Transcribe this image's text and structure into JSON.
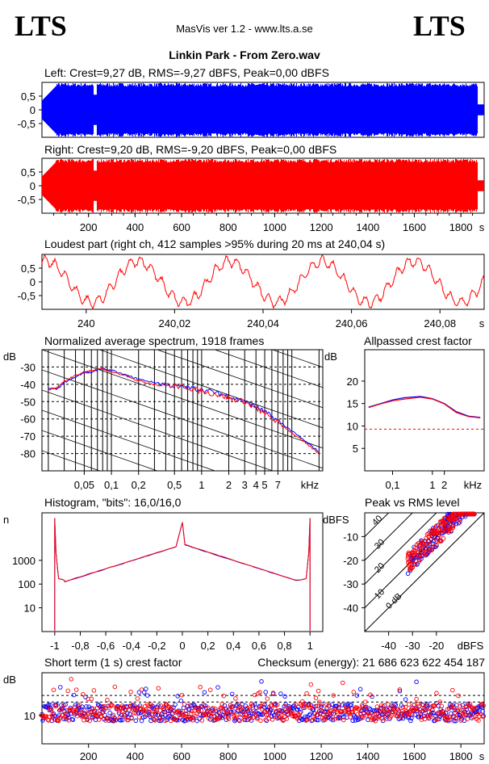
{
  "header": {
    "brand_left": "LTS",
    "brand_right": "LTS",
    "app_title": "MasVis ver 1.2 - www.lts.a.se",
    "file_title": "Linkin Park - From Zero.wav"
  },
  "colors": {
    "left_channel": "#0000ff",
    "right_channel": "#ff0000",
    "axes": "#000000",
    "background": "#ffffff"
  },
  "chart_data": [
    {
      "id": "left",
      "type": "area",
      "title": "Left: Crest=9,27 dB, RMS=-9,27 dBFS, Peak=0,00 dBFS",
      "ylim": [
        -1,
        1
      ],
      "xlim": [
        0,
        1900
      ],
      "yticks": [
        "0,5",
        "0",
        "-0,5"
      ],
      "xticks": [],
      "xunit": "",
      "series": [
        {
          "color": "#0000ff"
        }
      ]
    },
    {
      "id": "right",
      "type": "area",
      "title": "Right: Crest=9,20 dB, RMS=-9,20 dBFS, Peak=0,00 dBFS",
      "ylim": [
        -1,
        1
      ],
      "xlim": [
        0,
        1900
      ],
      "yticks": [
        "0,5",
        "0",
        "-0,5"
      ],
      "xticks": [
        "200",
        "400",
        "600",
        "800",
        "1000",
        "1200",
        "1400",
        "1600",
        "1800"
      ],
      "xunit": "s",
      "series": [
        {
          "color": "#ff0000"
        }
      ]
    },
    {
      "id": "loudest",
      "type": "line",
      "title": "Loudest part (right ch, 412 samples >95% during 20 ms at 240,04 s)",
      "ylim": [
        -1,
        1
      ],
      "xlim": [
        239.99,
        240.09
      ],
      "yticks": [
        "0,5",
        "0",
        "-0,5"
      ],
      "xticks": [
        "240",
        "240,02",
        "240,04",
        "240,06",
        "240,08"
      ],
      "xunit": "s",
      "series": [
        {
          "color": "#ff0000"
        }
      ]
    },
    {
      "id": "spectrum",
      "type": "line",
      "title": "Normalized average spectrum, 1918 frames",
      "ylabel": "dB",
      "xunit": "kHz",
      "yticks": [
        "-30",
        "-40",
        "-50",
        "-60",
        "-70",
        "-80"
      ],
      "xticks": [
        "0,05",
        "0,1",
        "0,2",
        "0,5",
        "1",
        "2",
        "3",
        "4",
        "5",
        "7"
      ],
      "x": [
        0.02,
        0.025,
        0.03,
        0.04,
        0.05,
        0.06,
        0.08,
        0.1,
        0.15,
        0.2,
        0.3,
        0.5,
        0.7,
        1,
        1.5,
        2,
        3,
        4,
        5,
        7,
        10,
        15,
        20
      ],
      "series": [
        {
          "color": "#0000ff",
          "values": [
            -42,
            -43,
            -39,
            -36,
            -33,
            -33,
            -31,
            -32,
            -35,
            -37,
            -39,
            -41,
            -42,
            -43,
            -45,
            -47,
            -50,
            -53,
            -56,
            -61,
            -67,
            -74,
            -79
          ]
        },
        {
          "color": "#ff0000",
          "values": [
            -43,
            -42,
            -38,
            -35,
            -33,
            -32,
            -31,
            -33,
            -35,
            -38,
            -40,
            -41,
            -42,
            -44,
            -46,
            -48,
            -50,
            -54,
            -57,
            -62,
            -68,
            -75,
            -80
          ]
        }
      ]
    },
    {
      "id": "crest_allpass",
      "type": "line",
      "title": "Allpassed crest factor",
      "ylabel": "dB",
      "xunit": "kHz",
      "yticks": [
        "20",
        "15",
        "10",
        "5"
      ],
      "xticks": [
        "0,1",
        "1",
        "2"
      ],
      "reference_level": 9.3,
      "x": [
        0.025,
        0.05,
        0.1,
        0.2,
        0.5,
        1,
        2,
        4,
        8,
        16
      ],
      "series": [
        {
          "color": "#0000ff",
          "values": [
            14.2,
            15.0,
            15.8,
            16.3,
            16.6,
            16.1,
            15.0,
            13.2,
            12.2,
            11.9
          ]
        },
        {
          "color": "#ff0000",
          "values": [
            14.1,
            14.9,
            15.6,
            16.0,
            16.4,
            16.0,
            14.9,
            13.0,
            12.1,
            11.8
          ]
        }
      ]
    },
    {
      "id": "histogram",
      "type": "line",
      "title": "Histogram, \"bits\": 16,0/16,0",
      "ylabel": "n",
      "xlim": [
        -1,
        1
      ],
      "yticks": [
        "1000",
        "100",
        "10"
      ],
      "xticks": [
        "-1",
        "-0,8",
        "-0,6",
        "-0,4",
        "-0,2",
        "0",
        "0,2",
        "0,4",
        "0,6",
        "0,8",
        "1"
      ],
      "series": [
        {
          "color": "#0000ff"
        },
        {
          "color": "#ff0000"
        }
      ]
    },
    {
      "id": "peak_rms",
      "type": "scatter",
      "title": "Peak vs RMS level",
      "ylabel": "dBFS",
      "xunit": "dBFS",
      "yticks": [
        "-10",
        "-20",
        "-30",
        "-40"
      ],
      "xticks": [
        "-40",
        "-30",
        "-20"
      ],
      "diagonal_labels": [
        "40",
        "30",
        "20",
        "10",
        "0 dB"
      ],
      "series": [
        {
          "color": "#0000ff"
        },
        {
          "color": "#ff0000"
        }
      ]
    },
    {
      "id": "shortterm",
      "type": "scatter",
      "title": "Short term (1 s) crest factor",
      "subtitle": "Checksum (energy):  21 686 623 622 454 187",
      "ylabel": "dB",
      "yticks": [
        "10"
      ],
      "xticks": [
        "200",
        "400",
        "600",
        "800",
        "1000",
        "1200",
        "1400",
        "1600",
        "1800"
      ],
      "xunit": "s",
      "series": [
        {
          "color": "#0000ff"
        },
        {
          "color": "#ff0000"
        }
      ]
    }
  ]
}
